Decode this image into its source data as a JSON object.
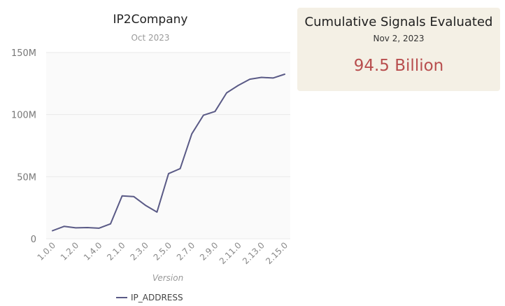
{
  "chart_data": {
    "type": "line",
    "title": "IP2Company",
    "subtitle": "Oct 2023",
    "xlabel": "Version",
    "ylabel": "",
    "ylim": [
      0,
      150000000
    ],
    "y_ticks": [
      "0",
      "50M",
      "100M",
      "150M"
    ],
    "y_tick_values": [
      0,
      50000000,
      100000000,
      150000000
    ],
    "grid": true,
    "legend_position": "bottom",
    "categories": [
      "1.0.0",
      "1.1.0",
      "1.2.0",
      "1.3.0",
      "1.4.0",
      "1.5.0",
      "2.1.0",
      "2.2.0",
      "2.3.0",
      "2.4.0",
      "2.5.0",
      "2.6.0",
      "2.7.0",
      "2.8.0",
      "2.9.0",
      "2.10.0",
      "2.11.0",
      "2.12.0",
      "2.13.0",
      "2.14.0",
      "2.15.0"
    ],
    "x_tick_labels": [
      "1.0.0",
      "1.2.0",
      "1.4.0",
      "2.1.0",
      "2.3.0",
      "2.5.0",
      "2.7.0",
      "2.9.0",
      "2.11.0",
      "2.13.0",
      "2.15.0"
    ],
    "series": [
      {
        "name": "IP_ADDRESS",
        "color": "#5a5a86",
        "values": [
          6500000,
          10000000,
          8800000,
          9000000,
          8500000,
          12000000,
          34500000,
          34000000,
          27000000,
          21500000,
          52500000,
          56500000,
          84500000,
          99500000,
          102500000,
          117500000,
          123500000,
          128500000,
          130000000,
          129500000,
          132500000
        ]
      }
    ]
  },
  "kpi": {
    "title": "Cumulative Signals Evaluated",
    "date": "Nov 2, 2023",
    "value": "94.5 Billion",
    "value_color": "#b84e4e",
    "background": "#f4f0e5"
  }
}
